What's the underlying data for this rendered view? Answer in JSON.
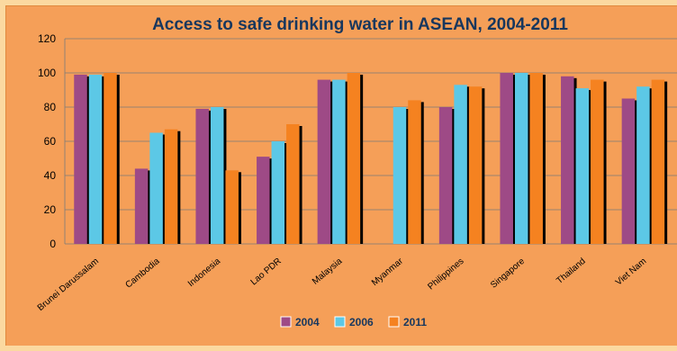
{
  "chart_data": {
    "type": "bar",
    "title": "Access to safe drinking water in ASEAN, 2004-2011",
    "xlabel": "",
    "ylabel": "",
    "ylim": [
      0,
      120
    ],
    "yticks": [
      0,
      20,
      40,
      60,
      80,
      100,
      120
    ],
    "grid": true,
    "legend_position": "bottom",
    "categories": [
      "Brunei Darussalam",
      "Cambodia",
      "Indonesia",
      "Lao PDR",
      "Malaysia",
      "Myanmar",
      "Philippines",
      "Singapore",
      "Thailand",
      "Viet Nam"
    ],
    "series": [
      {
        "name": "2004",
        "color": "#9e4a86",
        "values": [
          99,
          44,
          79,
          51,
          96,
          null,
          80,
          100,
          98,
          85
        ]
      },
      {
        "name": "2006",
        "color": "#5cc8e6",
        "values": [
          99,
          65,
          80,
          60,
          96,
          80,
          93,
          100,
          91,
          92
        ]
      },
      {
        "name": "2011",
        "color": "#f58220",
        "values": [
          100,
          67,
          43,
          70,
          100,
          84,
          92,
          100,
          96,
          96
        ]
      }
    ]
  }
}
